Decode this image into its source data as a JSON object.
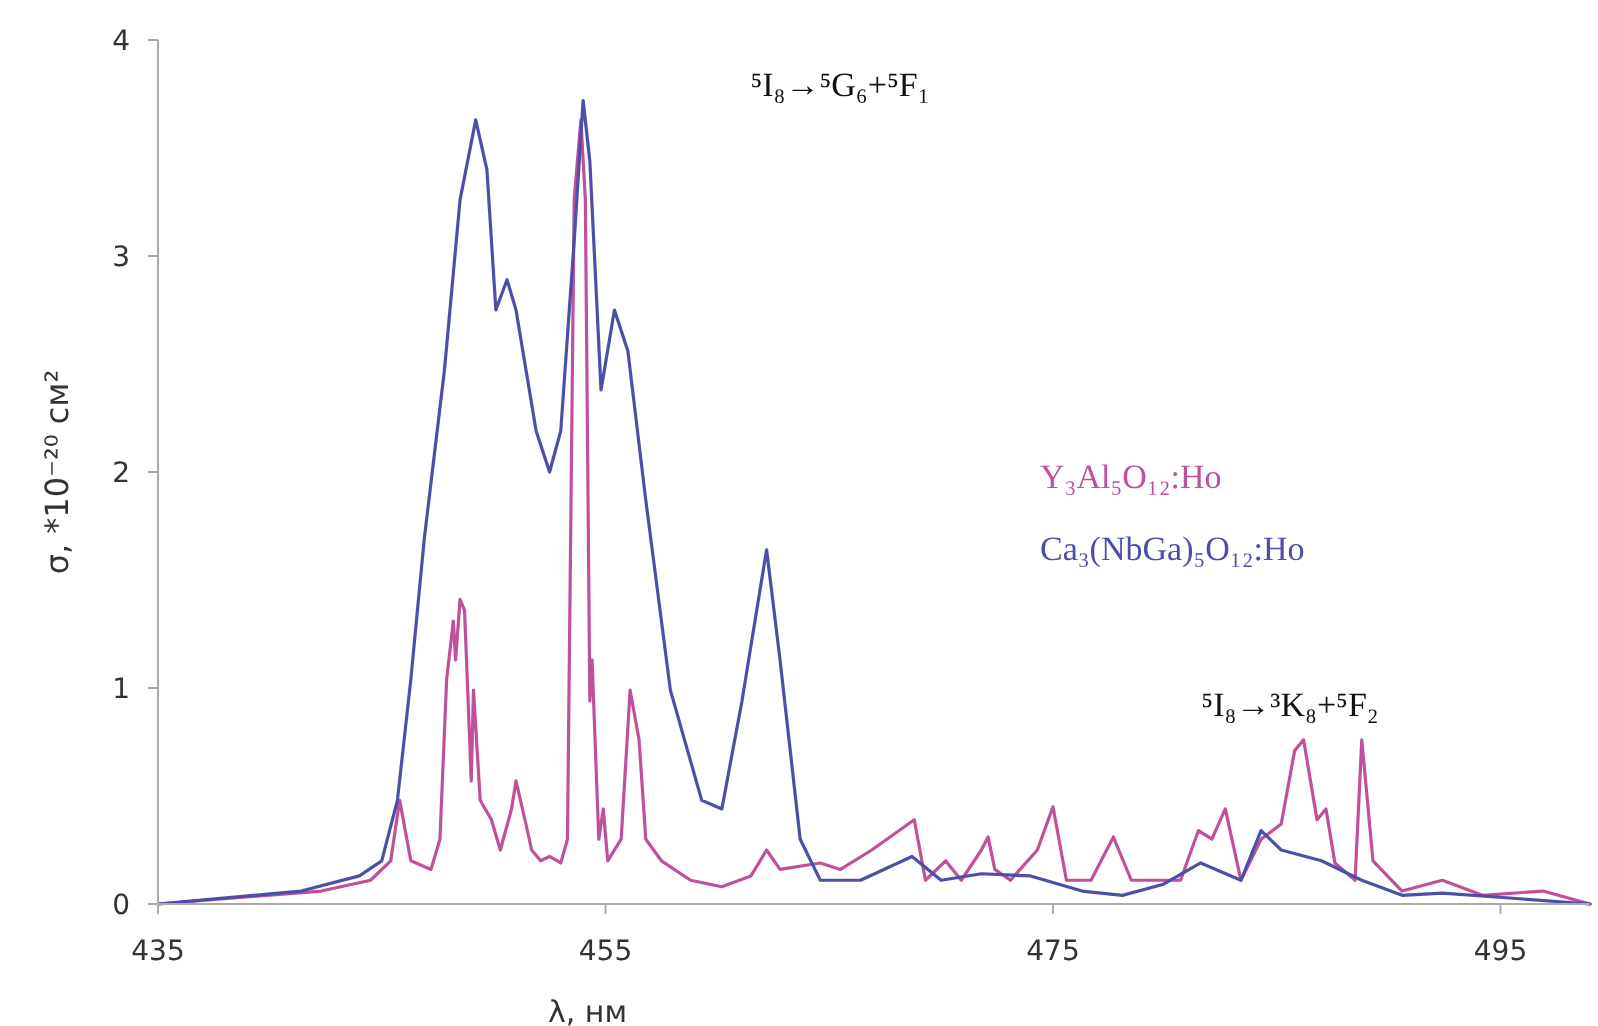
{
  "chart_data": {
    "type": "line",
    "xlabel": "λ, нм",
    "ylabel": "σ, *10⁻²⁰ см²",
    "xlim": [
      435,
      499
    ],
    "ylim": [
      0,
      4
    ],
    "xticks": [
      435,
      455,
      475,
      495
    ],
    "yticks": [
      0,
      1,
      2,
      3,
      4
    ],
    "grid": false,
    "legend": "right",
    "marker": "none",
    "line_style": "solid",
    "annotations": [
      "⁵I₈→⁵G₆+⁵F₁",
      "⁵I₈→³K₈+⁵F₂"
    ],
    "series": [
      {
        "name": "Y₃Al₅O₁₂:Ho",
        "color": "#c0509a",
        "x": [
          435,
          442.3,
          444.5,
          445.4,
          445.8,
          446.3,
          447.2,
          447.6,
          447.9,
          448.2,
          448.3,
          448.5,
          448.7,
          449.0,
          449.1,
          449.4,
          449.9,
          450.3,
          450.8,
          451.0,
          451.4,
          451.7,
          452.1,
          452.5,
          453.0,
          453.3,
          453.6,
          453.9,
          454.1,
          454.3,
          454.4,
          454.7,
          454.9,
          455.1,
          455.7,
          456.1,
          456.5,
          456.8,
          457.5,
          458.8,
          460.2,
          461.5,
          462.2,
          462.8,
          464.6,
          465.5,
          466.9,
          468.8,
          469.3,
          470.2,
          470.9,
          471.8,
          472.1,
          472.4,
          473.1,
          474.3,
          475.0,
          475.6,
          476.7,
          477.7,
          478.5,
          480.7,
          481.5,
          482.1,
          482.7,
          483.4,
          484.3,
          485.2,
          485.8,
          486.2,
          486.8,
          487.2,
          487.6,
          488.5,
          488.8,
          489.3,
          490.6,
          492.4,
          494.2,
          496.9,
          499
        ],
        "values": [
          0,
          0.06,
          0.11,
          0.2,
          0.48,
          0.2,
          0.16,
          0.3,
          1.04,
          1.31,
          1.13,
          1.41,
          1.36,
          0.57,
          0.99,
          0.48,
          0.39,
          0.25,
          0.44,
          0.57,
          0.39,
          0.25,
          0.2,
          0.22,
          0.19,
          0.3,
          3.26,
          3.63,
          3.26,
          0.94,
          1.13,
          0.3,
          0.44,
          0.2,
          0.3,
          0.99,
          0.76,
          0.3,
          0.2,
          0.11,
          0.08,
          0.13,
          0.25,
          0.16,
          0.19,
          0.16,
          0.25,
          0.39,
          0.11,
          0.2,
          0.11,
          0.25,
          0.31,
          0.16,
          0.11,
          0.25,
          0.45,
          0.11,
          0.11,
          0.31,
          0.11,
          0.11,
          0.34,
          0.3,
          0.44,
          0.11,
          0.3,
          0.37,
          0.71,
          0.76,
          0.39,
          0.44,
          0.19,
          0.11,
          0.76,
          0.2,
          0.06,
          0.11,
          0.04,
          0.06,
          0
        ]
      },
      {
        "name": "Ca₃(NbGa)₅O₁₂:Ho",
        "color": "#4b4fa8",
        "x": [
          435,
          441.4,
          444,
          445,
          445.7,
          446.3,
          446.9,
          447.8,
          448.5,
          449.2,
          449.7,
          450.1,
          450.6,
          451.0,
          451.9,
          452.5,
          453.0,
          453.6,
          454.0,
          454.3,
          454.8,
          455.4,
          456.0,
          456.8,
          457.9,
          459.3,
          460.2,
          461.1,
          461.9,
          462.2,
          462.8,
          463.3,
          463.7,
          464.6,
          466.4,
          468.7,
          470,
          471.8,
          474,
          476.3,
          478.1,
          479.9,
          481.6,
          483.4,
          484.3,
          485.2,
          487,
          488.8,
          490.6,
          492.4,
          495.1,
          499
        ],
        "values": [
          0,
          0.06,
          0.13,
          0.2,
          0.48,
          1.04,
          1.69,
          2.47,
          3.26,
          3.63,
          3.4,
          2.75,
          2.89,
          2.75,
          2.19,
          2.0,
          2.19,
          3.07,
          3.72,
          3.44,
          2.38,
          2.75,
          2.56,
          1.87,
          0.99,
          0.48,
          0.44,
          0.94,
          1.45,
          1.64,
          1.13,
          0.67,
          0.3,
          0.11,
          0.11,
          0.22,
          0.11,
          0.14,
          0.13,
          0.06,
          0.04,
          0.09,
          0.19,
          0.11,
          0.34,
          0.25,
          0.2,
          0.11,
          0.04,
          0.05,
          0.03,
          0
        ]
      }
    ]
  }
}
